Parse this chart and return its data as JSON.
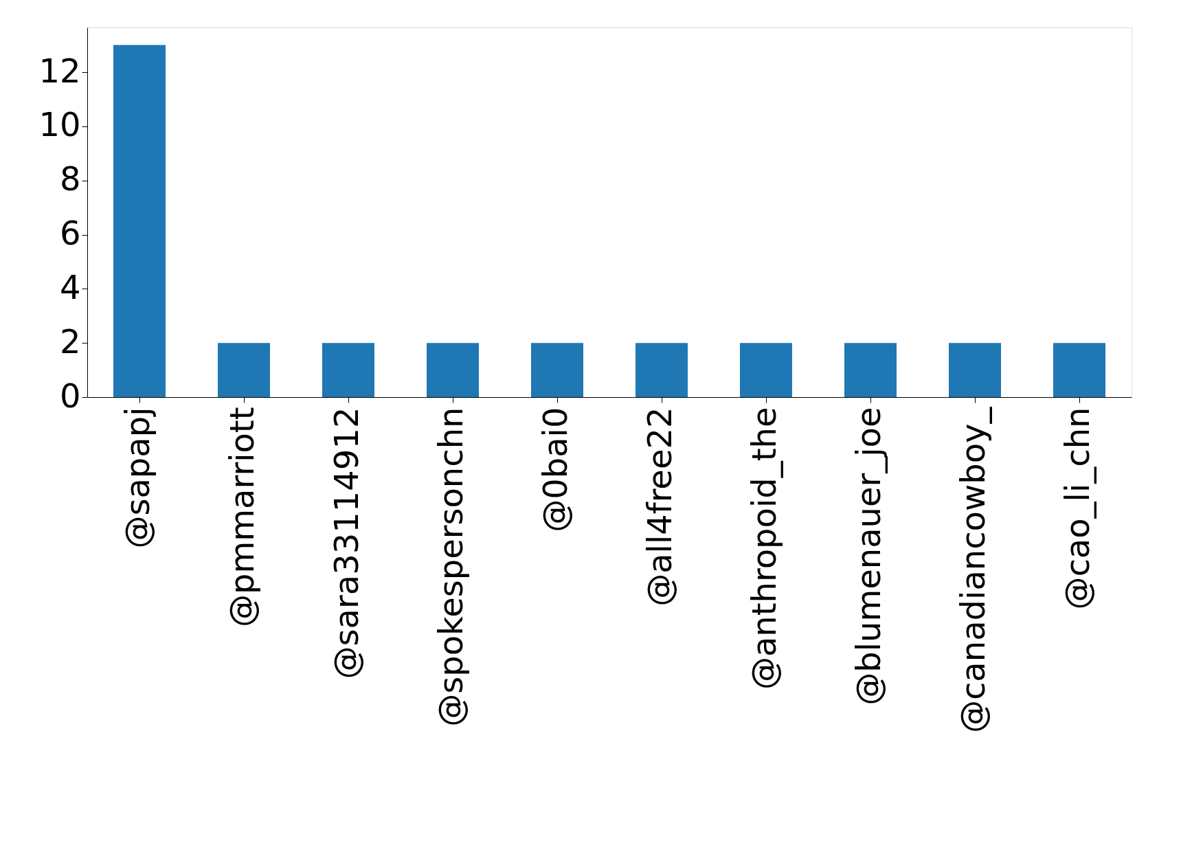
{
  "chart_data": {
    "type": "bar",
    "categories": [
      "@sapapj",
      "@pmmarriott",
      "@sara33114912",
      "@spokespersonchn",
      "@0bai0",
      "@all4free22",
      "@anthropoid_the",
      "@blumenauer_joe",
      "@canadiancowboy_",
      "@cao_li_chn"
    ],
    "values": [
      13,
      2,
      2,
      2,
      2,
      2,
      2,
      2,
      2,
      2
    ],
    "color": "#1f77b4",
    "ylim": [
      0,
      13.65
    ],
    "yticks": [
      0,
      2,
      4,
      6,
      8,
      10,
      12
    ],
    "grid": false
  }
}
